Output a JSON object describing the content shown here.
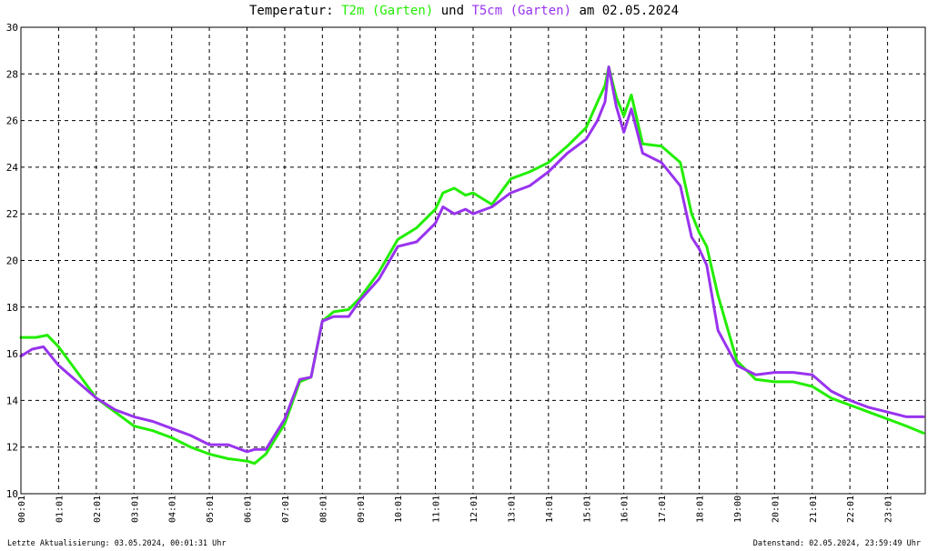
{
  "title": {
    "prefix": "Temperatur: ",
    "series1": "T2m (Garten)",
    "connector": " und ",
    "series2": "T5cm (Garten)",
    "suffix": " am 02.05.2024"
  },
  "footer": {
    "left": "Letzte Aktualisierung: 03.05.2024, 00:01:31 Uhr",
    "right": "Datenstand: 02.05.2024, 23:59:49 Uhr"
  },
  "colors": {
    "t2m": "#22ee00",
    "t5cm": "#9933ee",
    "grid": "#000000",
    "background": "#ffffff"
  },
  "chart_data": {
    "type": "line",
    "title": "Temperatur: T2m (Garten) und T5cm (Garten) am 02.05.2024",
    "xlabel": "",
    "ylabel": "",
    "xlim": [
      0,
      24
    ],
    "ylim": [
      10,
      30
    ],
    "grid": true,
    "grid_style": "dashed",
    "legend": "in title",
    "x_ticks": [
      "00:01",
      "01:01",
      "02:01",
      "03:01",
      "04:01",
      "05:01",
      "06:01",
      "07:01",
      "08:01",
      "09:01",
      "10:01",
      "11:01",
      "12:01",
      "13:01",
      "14:01",
      "15:01",
      "16:01",
      "17:01",
      "18:01",
      "19:00",
      "20:01",
      "21:01",
      "22:01",
      "23:01"
    ],
    "y_ticks": [
      10,
      12,
      14,
      16,
      18,
      20,
      22,
      24,
      26,
      28,
      30
    ],
    "series": [
      {
        "name": "T2m (Garten)",
        "color": "#22ee00",
        "x": [
          0.0,
          0.4,
          0.7,
          1.0,
          1.5,
          2.0,
          2.5,
          3.0,
          3.5,
          4.0,
          4.5,
          5.0,
          5.5,
          6.0,
          6.2,
          6.5,
          7.0,
          7.4,
          7.7,
          8.0,
          8.3,
          8.7,
          9.0,
          9.5,
          10.0,
          10.5,
          11.0,
          11.2,
          11.5,
          11.8,
          12.0,
          12.5,
          13.0,
          13.5,
          14.0,
          14.5,
          15.0,
          15.3,
          15.5,
          15.6,
          15.8,
          16.0,
          16.2,
          16.5,
          17.0,
          17.5,
          17.8,
          18.0,
          18.2,
          18.5,
          19.0,
          19.5,
          20.0,
          20.5,
          21.0,
          21.5,
          22.0,
          22.5,
          23.0,
          23.5,
          23.95
        ],
        "y": [
          16.7,
          16.7,
          16.8,
          16.3,
          15.2,
          14.1,
          13.5,
          12.9,
          12.7,
          12.4,
          12.0,
          11.7,
          11.5,
          11.4,
          11.3,
          11.7,
          13.0,
          14.8,
          15.0,
          17.4,
          17.8,
          17.9,
          18.4,
          19.5,
          20.9,
          21.4,
          22.2,
          22.9,
          23.1,
          22.8,
          22.9,
          22.4,
          23.5,
          23.8,
          24.2,
          24.9,
          25.7,
          26.8,
          27.5,
          28.3,
          27.0,
          26.2,
          27.1,
          25.0,
          24.9,
          24.2,
          22.0,
          21.2,
          20.6,
          18.5,
          15.7,
          14.9,
          14.8,
          14.8,
          14.6,
          14.1,
          13.8,
          13.5,
          13.2,
          12.9,
          12.6
        ]
      },
      {
        "name": "T5cm (Garten)",
        "color": "#9933ee",
        "x": [
          0.0,
          0.3,
          0.6,
          1.0,
          1.5,
          2.0,
          2.5,
          3.0,
          3.5,
          4.0,
          4.5,
          5.0,
          5.5,
          6.0,
          6.2,
          6.5,
          7.0,
          7.4,
          7.7,
          8.0,
          8.3,
          8.7,
          9.0,
          9.5,
          10.0,
          10.5,
          11.0,
          11.2,
          11.5,
          11.8,
          12.0,
          12.5,
          13.0,
          13.5,
          14.0,
          14.5,
          15.0,
          15.3,
          15.5,
          15.6,
          15.8,
          16.0,
          16.2,
          16.5,
          17.0,
          17.5,
          17.8,
          18.0,
          18.2,
          18.5,
          19.0,
          19.5,
          20.0,
          20.5,
          21.0,
          21.5,
          22.0,
          22.5,
          23.0,
          23.5,
          23.95
        ],
        "y": [
          15.9,
          16.2,
          16.3,
          15.5,
          14.8,
          14.1,
          13.6,
          13.3,
          13.1,
          12.8,
          12.5,
          12.1,
          12.1,
          11.8,
          11.9,
          11.9,
          13.2,
          14.9,
          15.0,
          17.4,
          17.6,
          17.6,
          18.3,
          19.2,
          20.6,
          20.8,
          21.6,
          22.3,
          22.0,
          22.2,
          22.0,
          22.3,
          22.9,
          23.2,
          23.8,
          24.6,
          25.2,
          26.0,
          26.8,
          28.3,
          26.6,
          25.5,
          26.5,
          24.6,
          24.2,
          23.2,
          21.0,
          20.5,
          19.8,
          17.0,
          15.5,
          15.1,
          15.2,
          15.2,
          15.1,
          14.4,
          14.0,
          13.7,
          13.5,
          13.3,
          13.3
        ]
      }
    ]
  }
}
